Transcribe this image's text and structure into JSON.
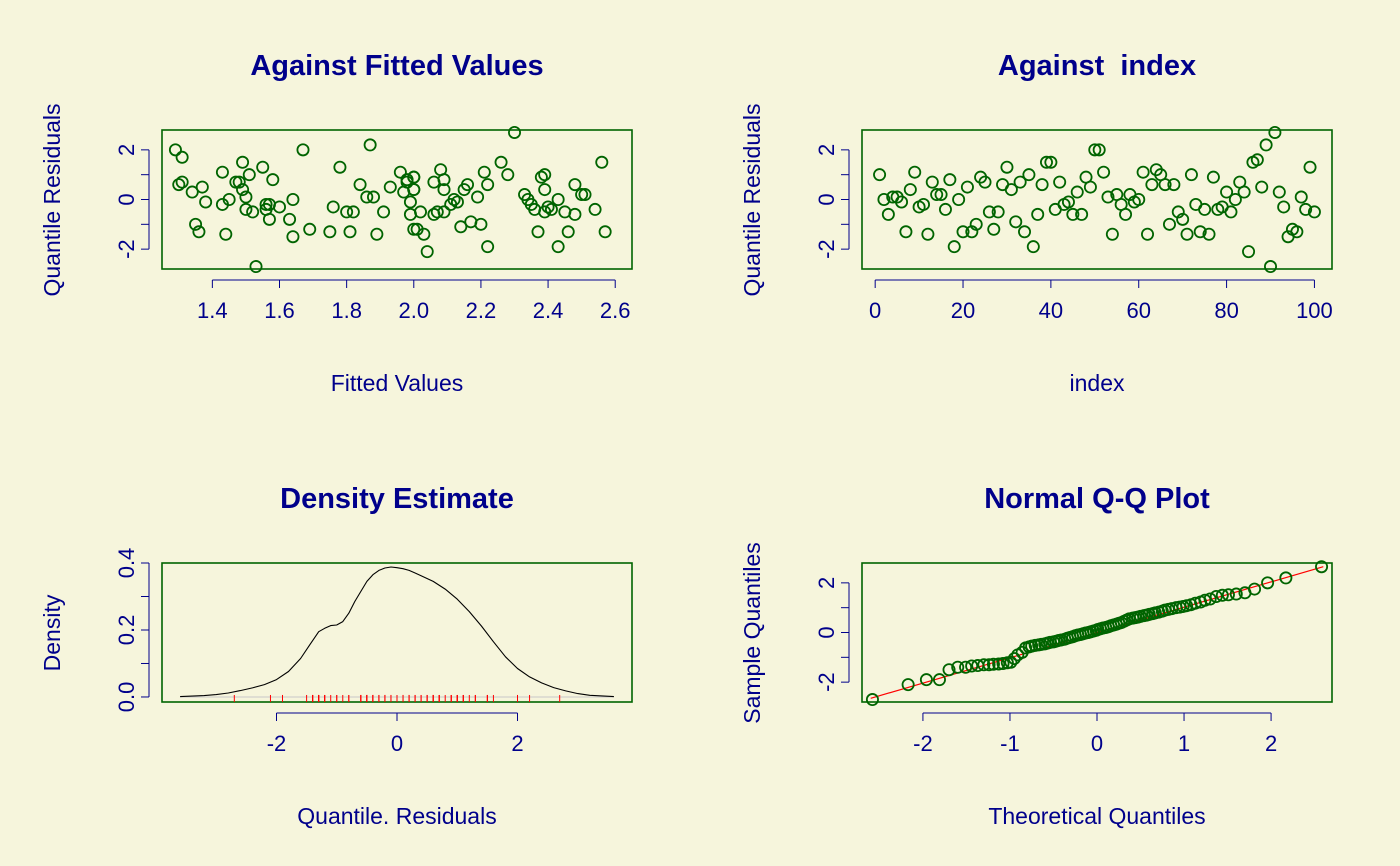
{
  "chart_data": [
    {
      "type": "scatter",
      "title": "Against Fitted Values",
      "xlabel": "Fitted Values",
      "ylabel": "Quantile Residuals",
      "xlim": [
        1.25,
        2.65
      ],
      "ylim": [
        -2.8,
        2.8
      ],
      "xticks": [
        1.4,
        1.6,
        1.8,
        2.0,
        2.2,
        2.4,
        2.6
      ],
      "xtick_labels": [
        "1.4",
        "1.6",
        "1.8",
        "2.0",
        "2.2",
        "2.4",
        "2.6"
      ],
      "yticks": [
        -2,
        -1,
        0,
        1,
        2
      ],
      "ytick_labels": [
        "-2",
        "",
        "0",
        "",
        "2"
      ],
      "colors": {
        "points": "#006400",
        "frame": "#006400"
      },
      "x": [
        1.29,
        1.31,
        1.3,
        1.31,
        1.34,
        1.35,
        1.36,
        1.37,
        1.38,
        1.43,
        1.43,
        1.44,
        1.45,
        1.47,
        1.48,
        1.49,
        1.49,
        1.5,
        1.5,
        1.51,
        1.52,
        1.53,
        1.55,
        1.56,
        1.56,
        1.57,
        1.57,
        1.58,
        1.6,
        1.63,
        1.64,
        1.64,
        1.67,
        1.69,
        1.75,
        1.76,
        1.78,
        1.8,
        1.81,
        1.82,
        1.84,
        1.86,
        1.87,
        1.88,
        1.89,
        1.91,
        1.93,
        1.96,
        1.97,
        1.98,
        1.98,
        1.99,
        1.99,
        2.0,
        2.0,
        2.0,
        2.0,
        2.0,
        2.01,
        2.02,
        2.03,
        2.04,
        2.06,
        2.06,
        2.07,
        2.08,
        2.09,
        2.09,
        2.09,
        2.11,
        2.12,
        2.13,
        2.14,
        2.15,
        2.16,
        2.17,
        2.19,
        2.2,
        2.21,
        2.22,
        2.22,
        2.26,
        2.28,
        2.3,
        2.33,
        2.34,
        2.35,
        2.36,
        2.37,
        2.38,
        2.39,
        2.39,
        2.39,
        2.4,
        2.41,
        2.43,
        2.43,
        2.45,
        2.46,
        2.48,
        2.48,
        2.5,
        2.51,
        2.54,
        2.56,
        2.57
      ],
      "y": [
        2.0,
        1.7,
        0.6,
        0.7,
        0.3,
        -1.0,
        -1.3,
        0.5,
        -0.1,
        1.1,
        -0.2,
        -1.4,
        0.0,
        0.7,
        0.7,
        1.5,
        0.4,
        0.1,
        -0.4,
        1.0,
        -0.5,
        -2.7,
        1.3,
        -0.4,
        -0.2,
        -0.2,
        -0.8,
        0.8,
        -0.3,
        -0.8,
        -1.5,
        0.0,
        2.0,
        -1.2,
        -1.3,
        -0.3,
        1.3,
        -0.5,
        -1.3,
        -0.5,
        0.6,
        0.1,
        2.2,
        0.1,
        -1.4,
        -0.5,
        0.5,
        1.1,
        0.3,
        0.8,
        0.7,
        -0.1,
        -0.6,
        0.4,
        0.4,
        0.9,
        0.9,
        -1.2,
        -1.2,
        -0.5,
        -1.4,
        -2.1,
        0.7,
        -0.6,
        -0.5,
        1.2,
        0.4,
        0.8,
        -0.5,
        -0.2,
        0.0,
        -0.1,
        -1.1,
        0.4,
        0.6,
        -0.9,
        0.1,
        -1.0,
        1.1,
        0.6,
        -1.9,
        1.5,
        1.0,
        2.7,
        0.2,
        0.0,
        -0.2,
        -0.4,
        -1.3,
        0.9,
        1.0,
        0.4,
        -0.5,
        -0.3,
        -0.4,
        -1.9,
        0.0,
        -0.5,
        -1.3,
        0.6,
        -0.6,
        0.2,
        0.2,
        -0.4,
        1.5,
        -1.3
      ]
    },
    {
      "type": "scatter",
      "title": "Against  index",
      "xlabel": "index",
      "ylabel": "Quantile Residuals",
      "xlim": [
        -3,
        104
      ],
      "ylim": [
        -2.8,
        2.8
      ],
      "xticks": [
        0,
        20,
        40,
        60,
        80,
        100
      ],
      "xtick_labels": [
        "0",
        "20",
        "40",
        "60",
        "80",
        "100"
      ],
      "yticks": [
        -2,
        -1,
        0,
        1,
        2
      ],
      "ytick_labels": [
        "-2",
        "",
        "0",
        "",
        "2"
      ],
      "colors": {
        "points": "#006400",
        "frame": "#006400"
      },
      "x": [
        1,
        2,
        3,
        4,
        5,
        6,
        7,
        8,
        9,
        10,
        11,
        12,
        13,
        14,
        15,
        16,
        17,
        18,
        19,
        20,
        21,
        22,
        23,
        24,
        25,
        26,
        27,
        28,
        29,
        30,
        31,
        32,
        33,
        34,
        35,
        36,
        37,
        38,
        39,
        40,
        41,
        42,
        43,
        44,
        45,
        46,
        47,
        48,
        49,
        50,
        51,
        52,
        53,
        54,
        55,
        56,
        57,
        58,
        59,
        60,
        61,
        62,
        63,
        64,
        65,
        66,
        67,
        68,
        69,
        70,
        71,
        72,
        73,
        74,
        75,
        76,
        77,
        78,
        79,
        80,
        81,
        82,
        83,
        84,
        85,
        86,
        87,
        88,
        89,
        90,
        91,
        92,
        93,
        94,
        95,
        96,
        97,
        98,
        99,
        100
      ],
      "y": [
        1.0,
        0.0,
        -0.6,
        0.1,
        0.1,
        -0.1,
        -1.3,
        0.4,
        1.1,
        -0.3,
        -0.2,
        -1.4,
        0.7,
        0.2,
        0.2,
        -0.4,
        0.8,
        -1.9,
        0.0,
        -1.3,
        0.5,
        -1.3,
        -1.0,
        0.9,
        0.7,
        -0.5,
        -1.2,
        -0.5,
        0.6,
        1.3,
        0.4,
        -0.9,
        0.7,
        -1.3,
        1.0,
        -1.9,
        -0.6,
        0.6,
        1.5,
        1.5,
        -0.4,
        0.7,
        -0.2,
        -0.1,
        -0.6,
        0.3,
        -0.6,
        0.9,
        0.5,
        2.0,
        2.0,
        1.1,
        0.1,
        -1.4,
        0.2,
        -0.2,
        -0.6,
        0.2,
        -0.1,
        0.0,
        1.1,
        -1.4,
        0.6,
        1.2,
        1.0,
        0.6,
        -1.0,
        0.6,
        -0.5,
        -0.8,
        -1.4,
        1.0,
        -0.2,
        -1.3,
        -0.4,
        -1.4,
        0.9,
        -0.4,
        -0.3,
        0.3,
        -0.5,
        0.0,
        0.7,
        0.3,
        -2.1,
        1.5,
        1.6,
        0.5,
        2.2,
        -2.7,
        2.7,
        0.3,
        -0.3,
        -1.5,
        -1.2,
        -1.3,
        0.1,
        -0.4,
        1.3,
        -0.5
      ]
    },
    {
      "type": "line",
      "title": "Density Estimate",
      "xlabel": "Quantile. Residuals",
      "ylabel": "Density",
      "xlim": [
        -3.9,
        3.9
      ],
      "ylim": [
        -0.015,
        0.4
      ],
      "xticks": [
        -2,
        0,
        2
      ],
      "xtick_labels": [
        "-2",
        "0",
        "2"
      ],
      "yticks": [
        0.0,
        0.1,
        0.2,
        0.3,
        0.4
      ],
      "ytick_labels": [
        "0.0",
        "",
        "0.2",
        "",
        "0.4"
      ],
      "colors": {
        "line": "#000000",
        "rug": "#ff0000",
        "baseline": "#c8c8c8",
        "frame": "#006400"
      },
      "series": [
        {
          "x": [
            -3.6,
            -3.2,
            -3.0,
            -2.8,
            -2.6,
            -2.4,
            -2.2,
            -2.0,
            -1.8,
            -1.6,
            -1.45,
            -1.3,
            -1.2,
            -1.1,
            -1.0,
            -0.9,
            -0.8,
            -0.7,
            -0.6,
            -0.5,
            -0.4,
            -0.3,
            -0.2,
            -0.1,
            0.0,
            0.1,
            0.2,
            0.3,
            0.4,
            0.6,
            0.8,
            1.0,
            1.2,
            1.4,
            1.6,
            1.8,
            2.0,
            2.2,
            2.4,
            2.6,
            2.8,
            3.0,
            3.2,
            3.6
          ],
          "y": [
            0.001,
            0.004,
            0.007,
            0.012,
            0.019,
            0.027,
            0.037,
            0.052,
            0.076,
            0.115,
            0.155,
            0.195,
            0.205,
            0.213,
            0.215,
            0.225,
            0.25,
            0.285,
            0.315,
            0.345,
            0.365,
            0.378,
            0.385,
            0.388,
            0.386,
            0.383,
            0.378,
            0.37,
            0.362,
            0.345,
            0.322,
            0.292,
            0.255,
            0.212,
            0.165,
            0.12,
            0.085,
            0.06,
            0.042,
            0.028,
            0.018,
            0.01,
            0.005,
            0.001
          ]
        }
      ],
      "rug": [
        -2.7,
        -2.1,
        -1.9,
        -1.9,
        -1.5,
        -1.4,
        -1.4,
        -1.4,
        -1.4,
        -1.3,
        -1.3,
        -1.3,
        -1.3,
        -1.3,
        -1.2,
        -1.2,
        -1.2,
        -1.1,
        -1.0,
        -1.0,
        -0.9,
        -0.8,
        -0.8,
        -0.6,
        -0.6,
        -0.6,
        -0.6,
        -0.5,
        -0.5,
        -0.5,
        -0.5,
        -0.5,
        -0.5,
        -0.4,
        -0.4,
        -0.4,
        -0.4,
        -0.4,
        -0.3,
        -0.3,
        -0.3,
        -0.2,
        -0.2,
        -0.2,
        -0.2,
        -0.1,
        -0.1,
        -0.1,
        0.0,
        0.0,
        0.0,
        0.0,
        0.1,
        0.1,
        0.1,
        0.2,
        0.2,
        0.2,
        0.2,
        0.3,
        0.3,
        0.3,
        0.4,
        0.4,
        0.5,
        0.5,
        0.5,
        0.6,
        0.6,
        0.6,
        0.6,
        0.6,
        0.7,
        0.7,
        0.7,
        0.7,
        0.8,
        0.9,
        0.9,
        0.9,
        1.0,
        1.0,
        1.0,
        1.0,
        1.1,
        1.1,
        1.1,
        1.2,
        1.3,
        1.3,
        1.5,
        1.5,
        1.5,
        1.6,
        2.0,
        2.0,
        2.2,
        2.7
      ]
    },
    {
      "type": "scatter",
      "title": "Normal Q-Q Plot",
      "xlabel": "Theoretical Quantiles",
      "ylabel": "Sample Quantiles",
      "xlim": [
        -2.7,
        2.7
      ],
      "ylim": [
        -2.8,
        2.8
      ],
      "xticks": [
        -2,
        -1,
        0,
        1,
        2
      ],
      "xtick_labels": [
        "-2",
        "-1",
        "0",
        "1",
        "2"
      ],
      "yticks": [
        -2,
        -1,
        0,
        1,
        2
      ],
      "ytick_labels": [
        "-2",
        "",
        "0",
        "",
        "2"
      ],
      "colors": {
        "points": "#006400",
        "line": "#ff0000",
        "frame": "#006400"
      },
      "reference_line": {
        "x": [
          -2.6,
          2.6
        ],
        "y": [
          -2.65,
          2.65
        ]
      },
      "x": [
        -2.58,
        -2.17,
        -1.96,
        -1.81,
        -1.7,
        -1.6,
        -1.51,
        -1.44,
        -1.37,
        -1.3,
        -1.24,
        -1.19,
        -1.13,
        -1.08,
        -1.03,
        -0.99,
        -0.95,
        -0.91,
        -0.86,
        -0.82,
        -0.78,
        -0.75,
        -0.71,
        -0.67,
        -0.64,
        -0.6,
        -0.57,
        -0.54,
        -0.5,
        -0.47,
        -0.44,
        -0.41,
        -0.37,
        -0.34,
        -0.31,
        -0.28,
        -0.25,
        -0.22,
        -0.19,
        -0.16,
        -0.13,
        -0.1,
        -0.07,
        -0.04,
        -0.01,
        0.01,
        0.04,
        0.07,
        0.1,
        0.13,
        0.16,
        0.19,
        0.22,
        0.25,
        0.28,
        0.31,
        0.34,
        0.37,
        0.41,
        0.44,
        0.47,
        0.5,
        0.54,
        0.57,
        0.6,
        0.64,
        0.67,
        0.71,
        0.75,
        0.78,
        0.82,
        0.86,
        0.91,
        0.95,
        0.99,
        1.03,
        1.08,
        1.13,
        1.19,
        1.24,
        1.3,
        1.37,
        1.44,
        1.51,
        1.6,
        1.7,
        1.81,
        1.96,
        2.17,
        2.58
      ],
      "y": [
        -2.7,
        -2.1,
        -1.9,
        -1.9,
        -1.5,
        -1.4,
        -1.4,
        -1.35,
        -1.33,
        -1.3,
        -1.3,
        -1.28,
        -1.27,
        -1.25,
        -1.22,
        -1.2,
        -1.05,
        -0.9,
        -0.8,
        -0.62,
        -0.58,
        -0.55,
        -0.52,
        -0.5,
        -0.48,
        -0.46,
        -0.43,
        -0.4,
        -0.38,
        -0.35,
        -0.32,
        -0.3,
        -0.27,
        -0.23,
        -0.2,
        -0.17,
        -0.13,
        -0.1,
        -0.08,
        -0.05,
        -0.02,
        0.0,
        0.03,
        0.06,
        0.09,
        0.12,
        0.15,
        0.18,
        0.2,
        0.23,
        0.27,
        0.3,
        0.33,
        0.37,
        0.4,
        0.45,
        0.5,
        0.55,
        0.58,
        0.6,
        0.62,
        0.65,
        0.68,
        0.7,
        0.73,
        0.76,
        0.79,
        0.82,
        0.86,
        0.9,
        0.93,
        0.96,
        1.0,
        1.02,
        1.05,
        1.08,
        1.12,
        1.18,
        1.23,
        1.3,
        1.35,
        1.45,
        1.5,
        1.52,
        1.55,
        1.6,
        1.75,
        2.0,
        2.2,
        2.65
      ]
    }
  ]
}
